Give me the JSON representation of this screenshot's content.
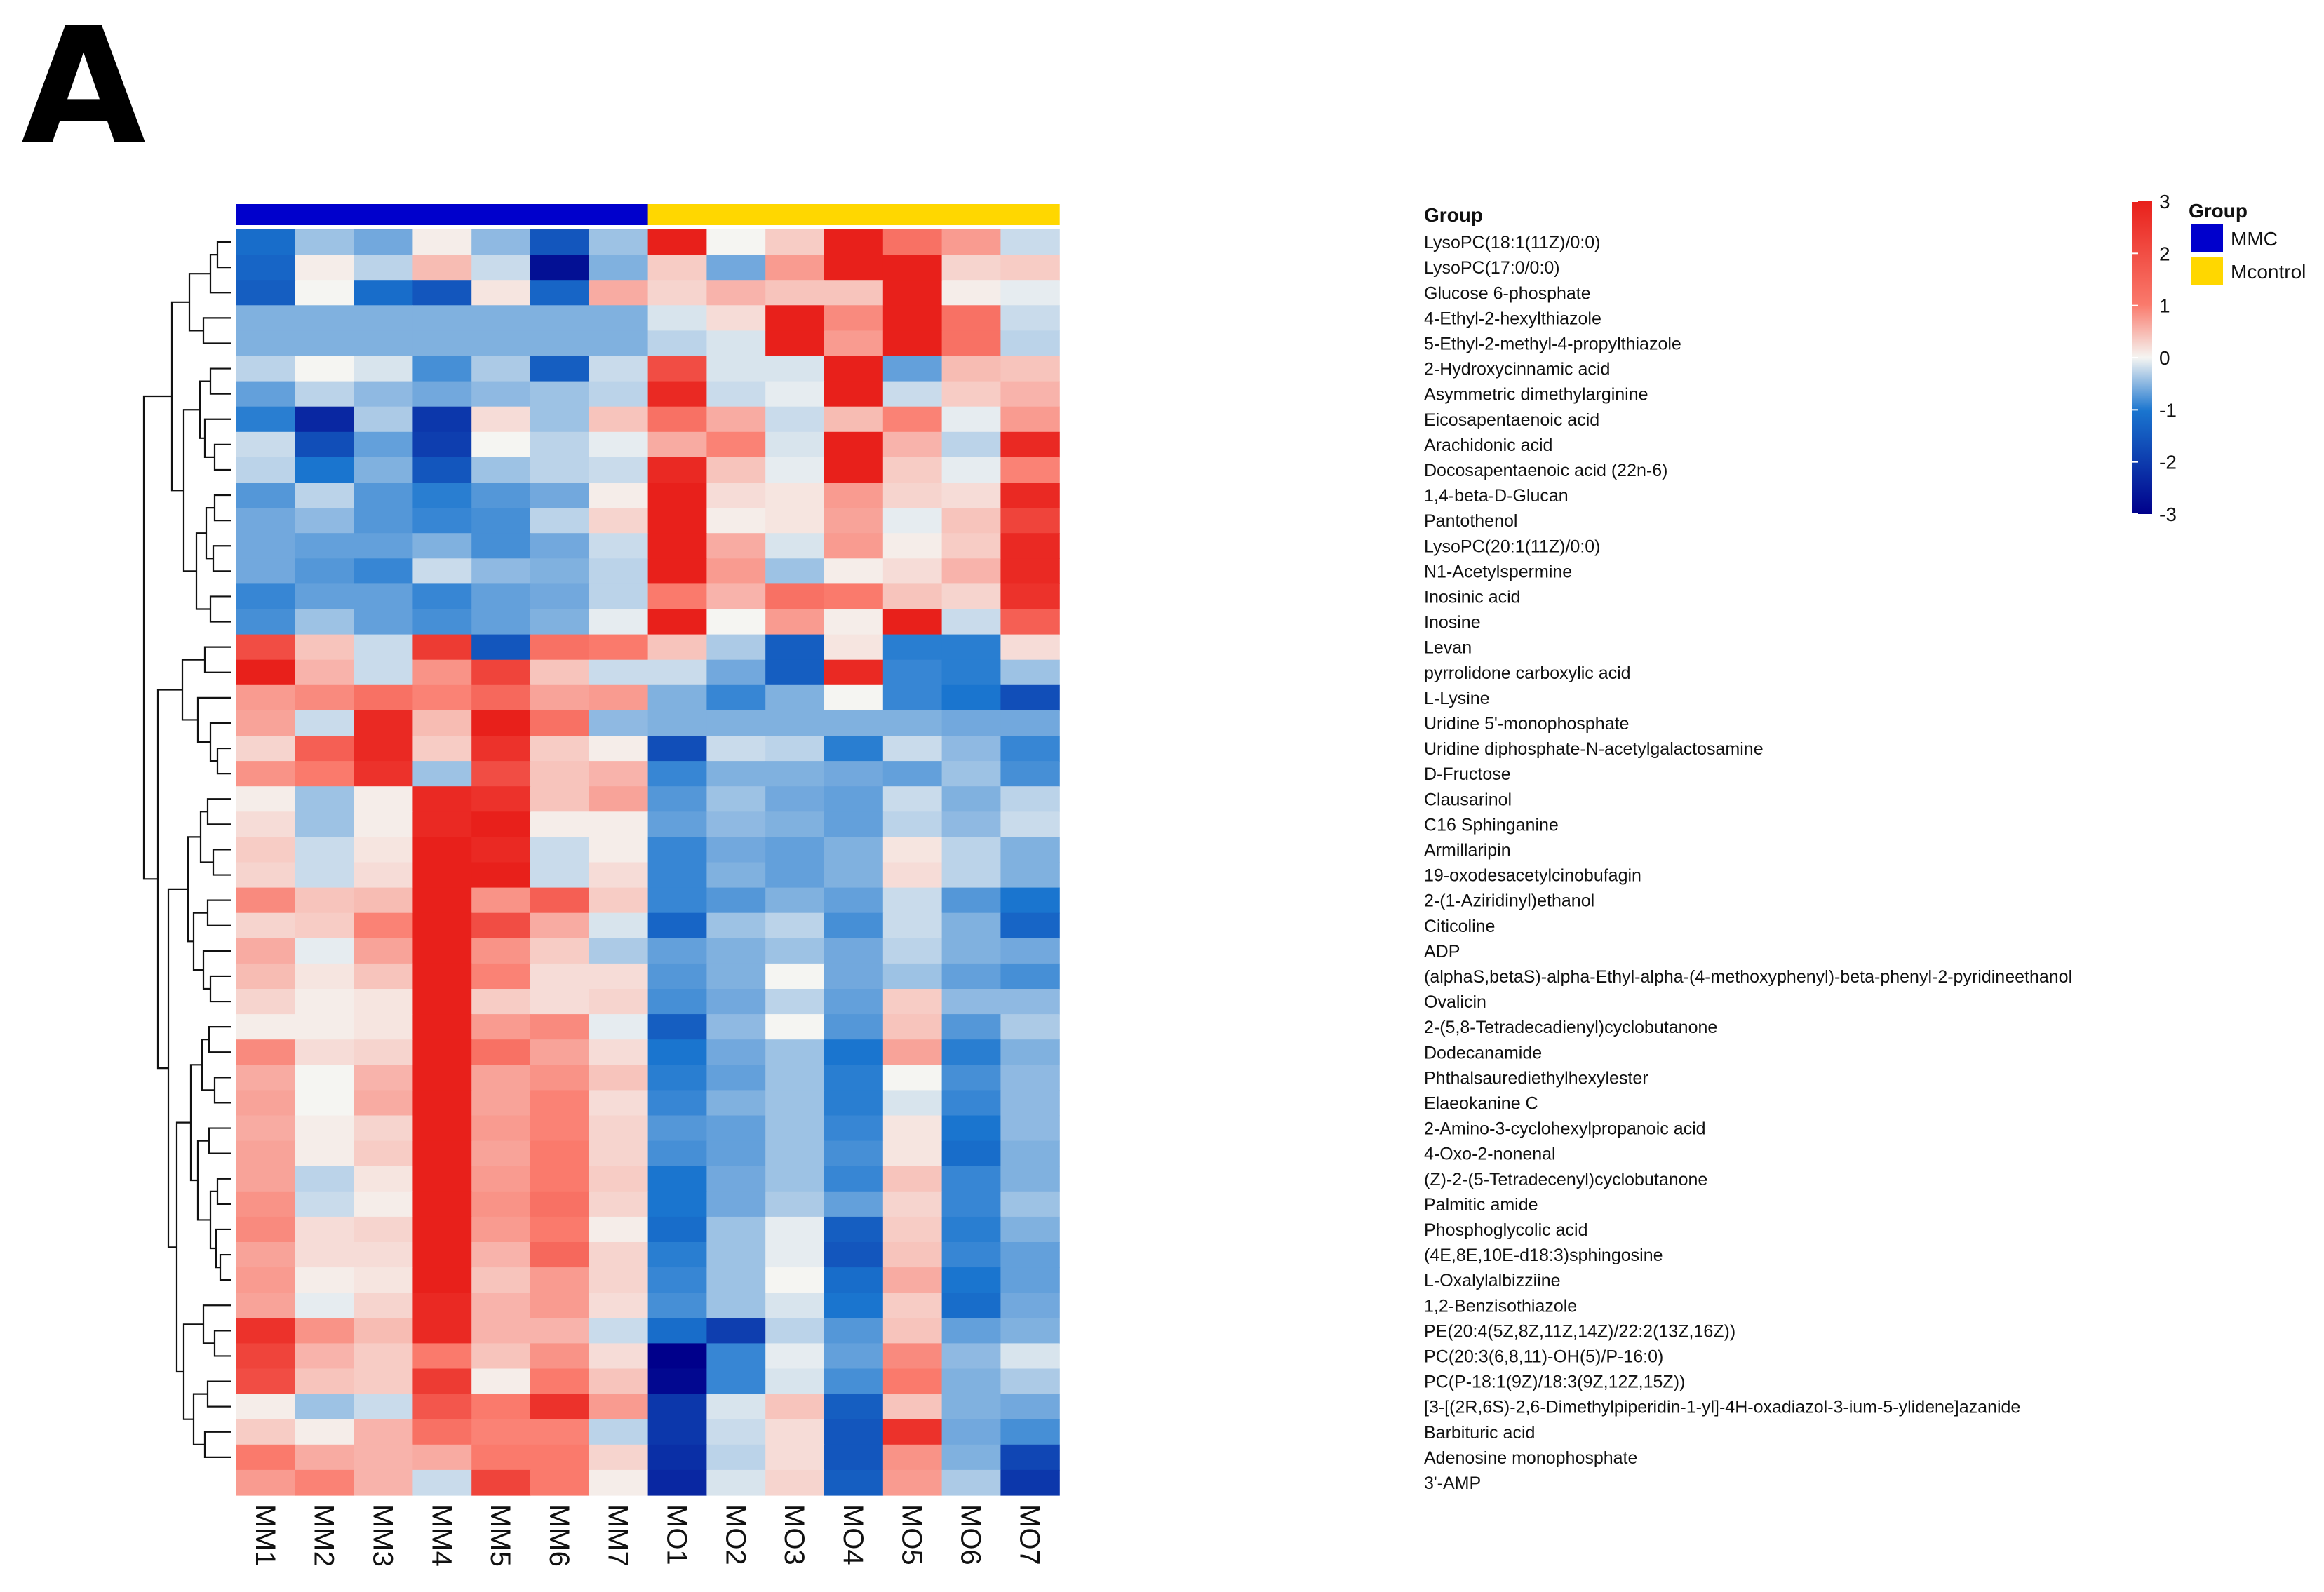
{
  "panel_label": "A",
  "chart_data": {
    "type": "heatmap",
    "title": "",
    "columns": [
      "MM1",
      "MM2",
      "MM3",
      "MM4",
      "MM5",
      "MM6",
      "MM7",
      "MO1",
      "MO2",
      "MO3",
      "MO4",
      "MO5",
      "MO6",
      "MO7"
    ],
    "column_groups": [
      "MMC",
      "MMC",
      "MMC",
      "MMC",
      "MMC",
      "MMC",
      "MMC",
      "Mcontrol",
      "Mcontrol",
      "Mcontrol",
      "Mcontrol",
      "Mcontrol",
      "Mcontrol",
      "Mcontrol"
    ],
    "group_annotation_label": "Group",
    "group_legend": {
      "title": "Group",
      "entries": [
        {
          "name": "MMC",
          "color": "#0000cc"
        },
        {
          "name": "Mcontrol",
          "color": "#ffd700"
        }
      ]
    },
    "color_scale": {
      "min": -3,
      "max": 3,
      "low_color": "#00008b",
      "mid_low_color": "#1a75cf",
      "mid_color": "#f5f5f2",
      "mid_high_color": "#fa7a6c",
      "high_color": "#e8201b",
      "ticks": [
        "3",
        "2",
        "1",
        "0",
        "-1",
        "-2",
        "-3"
      ]
    },
    "rows": [
      {
        "name": "LysoPC(18:1(11Z)/0:0)",
        "values": [
          -1.6,
          -0.6,
          -0.9,
          0.1,
          -0.7,
          -1.9,
          -0.6,
          2.5,
          0,
          0.5,
          2.5,
          1.6,
          1.1,
          -0.3
        ]
      },
      {
        "name": "LysoPC(17:0/0:0)",
        "values": [
          -1.7,
          0.1,
          -0.4,
          0.7,
          -0.3,
          -2.8,
          -0.8,
          0.5,
          -0.9,
          1.1,
          2.5,
          2.5,
          0.4,
          0.5
        ]
      },
      {
        "name": "Glucose 6-phosphate",
        "values": [
          -1.8,
          0,
          -1.6,
          -1.9,
          0.2,
          -1.7,
          0.9,
          0.4,
          0.8,
          0.6,
          0.6,
          2.5,
          0.1,
          -0.1
        ]
      },
      {
        "name": "4-Ethyl-2-hexylthiazole",
        "values": [
          -0.8,
          -0.8,
          -0.8,
          -0.8,
          -0.8,
          -0.8,
          -0.8,
          -0.2,
          0.3,
          2.5,
          1.3,
          2.5,
          1.6,
          -0.3
        ]
      },
      {
        "name": "5-Ethyl-2-methyl-4-propylthiazole",
        "values": [
          -0.8,
          -0.8,
          -0.8,
          -0.8,
          -0.8,
          -0.8,
          -0.8,
          -0.4,
          -0.2,
          2.5,
          1.1,
          2.5,
          1.6,
          -0.4
        ]
      },
      {
        "name": "2-Hydroxycinnamic acid",
        "values": [
          -0.4,
          0,
          -0.2,
          -1.2,
          -0.5,
          -1.8,
          -0.3,
          2.0,
          -0.2,
          -0.2,
          2.7,
          -1.0,
          0.7,
          0.6
        ]
      },
      {
        "name": "Asymmetric dimethylarginine",
        "values": [
          -1,
          -0.4,
          -0.7,
          -0.9,
          -0.7,
          -0.6,
          -0.4,
          2.4,
          -0.3,
          -0.1,
          2.8,
          -0.3,
          0.5,
          0.8
        ]
      },
      {
        "name": "Eicosapentaenoic acid",
        "values": [
          -1.4,
          -2.5,
          -0.5,
          -2.3,
          0.3,
          -0.6,
          0.6,
          1.6,
          0.9,
          -0.3,
          0.7,
          1.4,
          -0.1,
          1.1
        ]
      },
      {
        "name": "Arachidonic acid",
        "values": [
          -0.3,
          -2.0,
          -1.0,
          -2.2,
          0,
          -0.4,
          -0.1,
          0.9,
          1.4,
          -0.2,
          2.5,
          0.8,
          -0.4,
          2.4
        ]
      },
      {
        "name": "Docosapentaenoic acid (22n-6)",
        "values": [
          -0.4,
          -1.5,
          -0.8,
          -1.9,
          -0.6,
          -0.4,
          -0.3,
          2.4,
          0.6,
          -0.1,
          2.5,
          0.5,
          -0.1,
          1.4
        ]
      },
      {
        "name": "1,4-beta-D-Glucan",
        "values": [
          -1.1,
          -0.4,
          -1.1,
          -1.4,
          -1.1,
          -0.9,
          0.1,
          2.5,
          0.3,
          0.2,
          1.1,
          0.4,
          0.3,
          2.4
        ]
      },
      {
        "name": "Pantothenol",
        "values": [
          -0.9,
          -0.7,
          -1.1,
          -1.3,
          -1.2,
          -0.4,
          0.4,
          2.6,
          0.1,
          0.2,
          1.0,
          -0.1,
          0.6,
          2.1
        ]
      },
      {
        "name": "LysoPC(20:1(11Z)/0:0)",
        "values": [
          -0.9,
          -1,
          -1,
          -0.8,
          -1.2,
          -0.9,
          -0.3,
          2.5,
          0.9,
          -0.2,
          1.1,
          0.1,
          0.5,
          2.4
        ]
      },
      {
        "name": "N1-Acetylspermine",
        "values": [
          -0.9,
          -1.1,
          -1.3,
          -0.3,
          -0.7,
          -0.8,
          -0.4,
          2.5,
          1.1,
          -0.6,
          0.1,
          0.3,
          0.8,
          2.4
        ]
      },
      {
        "name": "Inosinic acid",
        "values": [
          -1.3,
          -1,
          -1,
          -1.3,
          -1,
          -0.9,
          -0.4,
          1.5,
          0.8,
          1.6,
          1.5,
          0.6,
          0.4,
          2.3
        ]
      },
      {
        "name": "Inosine",
        "values": [
          -1.2,
          -0.6,
          -1.0,
          -1.2,
          -1.0,
          -0.8,
          -0.1,
          2.5,
          0,
          1.1,
          0.1,
          2.5,
          -0.3,
          1.8
        ]
      },
      {
        "name": "Levan",
        "values": [
          2.0,
          0.6,
          -0.3,
          2.2,
          -1.9,
          1.6,
          1.5,
          0.6,
          -0.5,
          -1.8,
          0.2,
          -1.4,
          -1.4,
          0.3
        ]
      },
      {
        "name": "pyrrolidone carboxylic acid",
        "values": [
          2.6,
          0.8,
          -0.3,
          1.2,
          2.1,
          0.6,
          -0.3,
          -0.3,
          -0.9,
          -1.8,
          2.4,
          -1.3,
          -1.4,
          -0.6
        ]
      },
      {
        "name": "L-Lysine",
        "values": [
          1.1,
          1.3,
          1.6,
          1.4,
          1.7,
          1.0,
          1.1,
          -0.8,
          -1.3,
          -0.8,
          0,
          -1.3,
          -1.5,
          -2.0
        ]
      },
      {
        "name": "Uridine 5'-monophosphate",
        "values": [
          1.0,
          -0.3,
          2.4,
          0.7,
          2.5,
          1.6,
          -0.7,
          -0.8,
          -0.8,
          -0.8,
          -0.8,
          -0.8,
          -0.9,
          -0.9
        ]
      },
      {
        "name": "Uridine diphosphate-N-acetylgalactosamine",
        "values": [
          0.4,
          1.8,
          2.4,
          0.5,
          2.3,
          0.5,
          0.1,
          -2.0,
          -0.3,
          -0.4,
          -1.4,
          -0.3,
          -0.7,
          -1.3
        ]
      },
      {
        "name": "D-Fructose",
        "values": [
          1.2,
          1.5,
          2.3,
          -0.6,
          2.0,
          0.6,
          0.8,
          -1.3,
          -0.8,
          -0.8,
          -0.9,
          -1.0,
          -0.6,
          -1.2
        ]
      },
      {
        "name": "Clausarinol",
        "values": [
          0.1,
          -0.6,
          0.1,
          2.4,
          2.3,
          0.6,
          1.0,
          -1.1,
          -0.6,
          -0.9,
          -1.0,
          -0.3,
          -0.8,
          -0.4
        ]
      },
      {
        "name": "C16 Sphinganine",
        "values": [
          0.3,
          -0.6,
          0.1,
          2.4,
          2.6,
          0.1,
          0.1,
          -1.0,
          -0.7,
          -0.8,
          -1.0,
          -0.4,
          -0.7,
          -0.3
        ]
      },
      {
        "name": "Armillaripin",
        "values": [
          0.5,
          -0.3,
          0.2,
          2.5,
          2.4,
          -0.3,
          0.1,
          -1.3,
          -0.9,
          -1.0,
          -0.8,
          0.2,
          -0.4,
          -0.8
        ]
      },
      {
        "name": "19-oxodesacetylcinobufagin",
        "values": [
          0.4,
          -0.3,
          0.3,
          2.5,
          2.5,
          -0.3,
          0.3,
          -1.3,
          -0.8,
          -1.0,
          -0.8,
          0.3,
          -0.4,
          -0.8
        ]
      },
      {
        "name": "2-(1-Aziridinyl)ethanol",
        "values": [
          1.3,
          0.6,
          0.7,
          2.5,
          1.2,
          1.8,
          0.5,
          -1.3,
          -1.1,
          -0.8,
          -1.0,
          -0.3,
          -1.1,
          -1.5
        ]
      },
      {
        "name": "Citicoline",
        "values": [
          0.4,
          0.5,
          1.4,
          2.5,
          2.0,
          0.9,
          -0.2,
          -1.7,
          -0.6,
          -0.4,
          -1.2,
          -0.3,
          -0.8,
          -1.7
        ]
      },
      {
        "name": "ADP",
        "values": [
          0.9,
          -0.1,
          1.0,
          2.6,
          1.2,
          0.5,
          -0.5,
          -1.0,
          -0.8,
          -0.6,
          -0.9,
          -0.4,
          -0.8,
          -0.9
        ]
      },
      {
        "name": "(alphaS,betaS)-alpha-Ethyl-alpha-(4-methoxyphenyl)-beta-phenyl-2-pyridineethanol",
        "values": [
          0.7,
          0.2,
          0.6,
          2.6,
          1.4,
          0.3,
          0.3,
          -1.1,
          -0.8,
          0,
          -0.9,
          -0.6,
          -1.0,
          -1.2
        ]
      },
      {
        "name": "Ovalicin",
        "values": [
          0.4,
          0.1,
          0.2,
          2.6,
          0.5,
          0.3,
          0.4,
          -1.2,
          -0.9,
          -0.4,
          -1.0,
          0.5,
          -0.7,
          -0.7
        ]
      },
      {
        "name": "2-(5,8-Tetradecadienyl)cyclobutanone",
        "values": [
          0.1,
          0.1,
          0.2,
          2.6,
          1.1,
          1.3,
          -0.1,
          -1.8,
          -0.7,
          0,
          -1.1,
          0.6,
          -1.1,
          -0.5
        ]
      },
      {
        "name": "Dodecanamide",
        "values": [
          1.3,
          0.3,
          0.4,
          2.5,
          1.6,
          1.0,
          0.3,
          -1.5,
          -0.9,
          -0.6,
          -1.5,
          1.0,
          -1.4,
          -0.8
        ]
      },
      {
        "name": "Phthalsaurediethylhexylester",
        "values": [
          0.9,
          0,
          0.8,
          2.5,
          1.0,
          1.2,
          0.6,
          -1.4,
          -1.0,
          -0.6,
          -1.4,
          0,
          -1.2,
          -0.7
        ]
      },
      {
        "name": "Elaeokanine C",
        "values": [
          1.0,
          0,
          0.9,
          2.5,
          1.0,
          1.4,
          0.3,
          -1.3,
          -0.8,
          -0.6,
          -1.4,
          -0.2,
          -1.3,
          -0.7
        ]
      },
      {
        "name": "2-Amino-3-cyclohexylpropanoic acid",
        "values": [
          0.9,
          0.1,
          0.4,
          2.5,
          1.1,
          1.4,
          0.4,
          -1.1,
          -1.0,
          -0.6,
          -1.3,
          0.2,
          -1.5,
          -0.7
        ]
      },
      {
        "name": "4-Oxo-2-nonenal",
        "values": [
          1.0,
          0.1,
          0.5,
          2.5,
          1.0,
          1.5,
          0.4,
          -1.2,
          -1.0,
          -0.6,
          -1.2,
          0.2,
          -1.6,
          -0.8
        ]
      },
      {
        "name": "(Z)-2-(5-Tetradecenyl)cyclobutanone",
        "values": [
          1.0,
          -0.4,
          0.2,
          2.5,
          1.1,
          1.5,
          0.5,
          -1.5,
          -0.9,
          -0.6,
          -1.3,
          0.6,
          -1.3,
          -0.8
        ]
      },
      {
        "name": "Palmitic amide",
        "values": [
          1.2,
          -0.3,
          0.1,
          2.5,
          1.2,
          1.6,
          0.4,
          -1.5,
          -0.9,
          -0.5,
          -1.0,
          0.4,
          -1.3,
          -0.6
        ]
      },
      {
        "name": "Phosphoglycolic acid",
        "values": [
          1.3,
          0.3,
          0.4,
          2.5,
          1.1,
          1.5,
          0.1,
          -1.6,
          -0.6,
          -0.1,
          -1.8,
          0.5,
          -1.4,
          -0.8
        ]
      },
      {
        "name": "(4E,8E,10E-d18:3)sphingosine",
        "values": [
          1.0,
          0.3,
          0.3,
          2.5,
          0.8,
          1.7,
          0.4,
          -1.4,
          -0.6,
          -0.1,
          -1.9,
          0.6,
          -1.3,
          -1.0
        ]
      },
      {
        "name": "L-Oxalylalbizziine",
        "values": [
          1.1,
          0.1,
          0.2,
          2.5,
          0.6,
          1.1,
          0.4,
          -1.3,
          -0.6,
          0,
          -1.6,
          0.9,
          -1.5,
          -1.0
        ]
      },
      {
        "name": "1,2-Benzisothiazole",
        "values": [
          1.0,
          -0.1,
          0.4,
          2.4,
          0.8,
          1.1,
          0.3,
          -1.2,
          -0.6,
          -0.2,
          -1.5,
          0.5,
          -1.6,
          -0.9
        ]
      },
      {
        "name": "PE(20:4(5Z,8Z,11Z,14Z)/22:2(13Z,16Z))",
        "values": [
          2.3,
          1.2,
          0.7,
          2.4,
          0.8,
          0.8,
          -0.3,
          -1.6,
          -2.2,
          -0.4,
          -1.1,
          0.6,
          -1.0,
          -0.8
        ]
      },
      {
        "name": "PC(20:3(6,8,11)-OH(5)/P-16:0)",
        "values": [
          2.1,
          0.8,
          0.5,
          1.5,
          0.6,
          1.2,
          0.3,
          -3.0,
          -1.3,
          -0.1,
          -1.0,
          1.3,
          -0.7,
          -0.2
        ]
      },
      {
        "name": "PC(P-18:1(9Z)/18:3(9Z,12Z,15Z))",
        "values": [
          2.0,
          0.6,
          0.5,
          2.2,
          0.1,
          1.5,
          0.6,
          -2.9,
          -1.3,
          -0.2,
          -1.2,
          1.5,
          -0.8,
          -0.5
        ]
      },
      {
        "name": "[3-[(2R,6S)-2,6-Dimethylpiperidin-1-yl]-4H-oxadiazol-3-ium-5-ylidene]azanide",
        "values": [
          0.1,
          -0.6,
          -0.3,
          1.9,
          1.5,
          2.3,
          1.1,
          -2.3,
          -0.2,
          0.6,
          -1.8,
          0.6,
          -0.8,
          -0.9
        ]
      },
      {
        "name": "Barbituric acid",
        "values": [
          0.5,
          0.1,
          0.8,
          1.6,
          1.4,
          1.4,
          -0.4,
          -2.3,
          -0.3,
          0.3,
          -1.9,
          2.3,
          -0.9,
          -1.2
        ]
      },
      {
        "name": "Adenosine monophosphate",
        "values": [
          1.5,
          0.9,
          0.8,
          0.9,
          1.5,
          1.5,
          0.4,
          -2.4,
          -0.4,
          0.3,
          -1.9,
          1.2,
          -0.8,
          -2.1
        ]
      },
      {
        "name": "3'-AMP",
        "values": [
          1.1,
          1.4,
          0.8,
          -0.3,
          2.1,
          1.5,
          0.1,
          -2.5,
          -0.2,
          0.4,
          -1.8,
          1.1,
          -0.5,
          -2.3
        ]
      }
    ]
  }
}
